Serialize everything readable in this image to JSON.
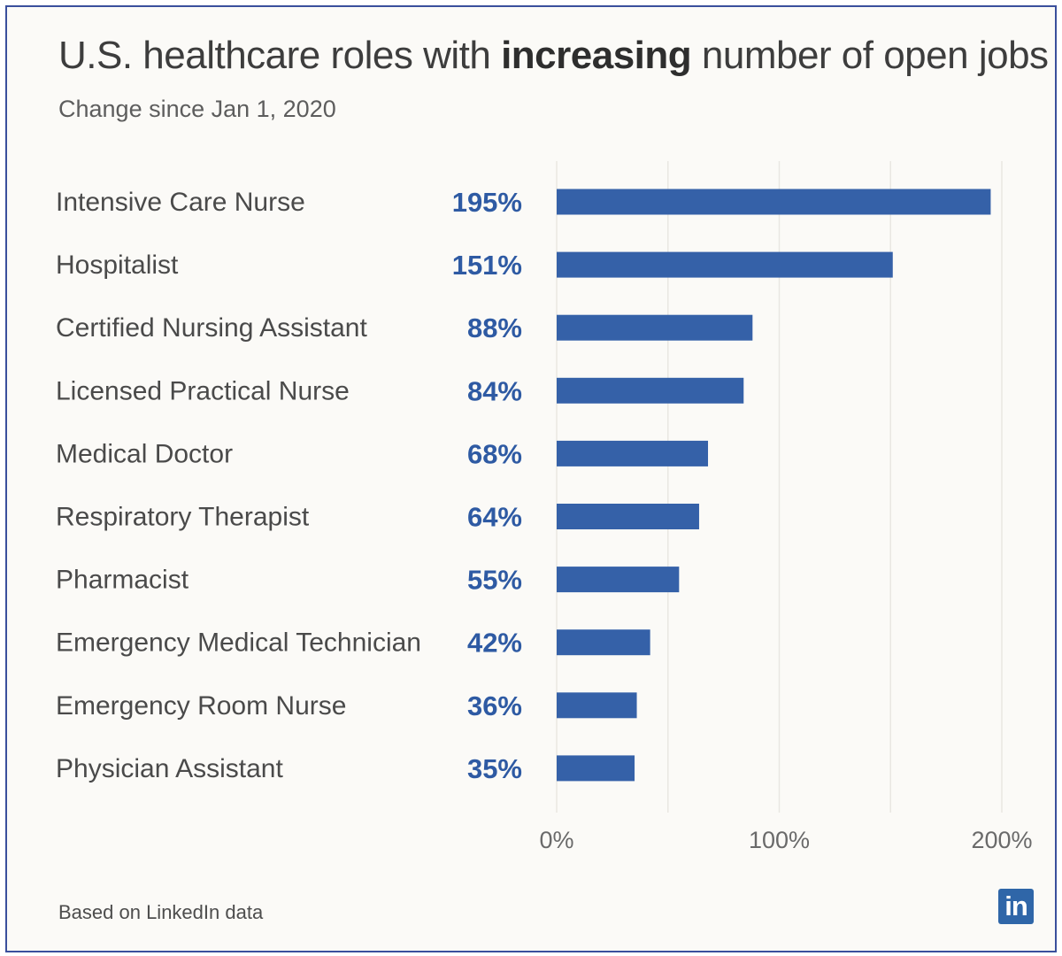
{
  "title": {
    "prefix": "U.S. healthcare roles with ",
    "emphasis": "increasing",
    "suffix": " number of open jobs"
  },
  "subtitle": "Change since Jan 1, 2020",
  "footer": "Based on LinkedIn data",
  "logo_text": "in",
  "colors": {
    "bar": "#3561a8",
    "value_label": "#2e5aa3",
    "category_label": "#4a4a4a",
    "grid": "#e9e7e2",
    "tick_label": "#6a6a6a",
    "logo": "#2f66a8",
    "frame": "#3a4f9c"
  },
  "chart_data": {
    "type": "bar",
    "orientation": "horizontal",
    "title": "U.S. healthcare roles with increasing number of open jobs",
    "subtitle": "Change since Jan 1, 2020",
    "categories": [
      "Intensive Care Nurse",
      "Hospitalist",
      "Certified Nursing Assistant",
      "Licensed Practical Nurse",
      "Medical Doctor",
      "Respiratory Therapist",
      "Pharmacist",
      "Emergency Medical Technician",
      "Emergency Room Nurse",
      "Physician Assistant"
    ],
    "values": [
      195,
      151,
      88,
      84,
      68,
      64,
      55,
      42,
      36,
      35
    ],
    "value_labels": [
      "195%",
      "151%",
      "88%",
      "84%",
      "68%",
      "64%",
      "55%",
      "42%",
      "36%",
      "35%"
    ],
    "xlim": [
      0,
      200
    ],
    "xticks": [
      0,
      100,
      200
    ],
    "xtick_labels": [
      "0%",
      "100%",
      "200%"
    ],
    "grid": true,
    "legend": "none"
  }
}
